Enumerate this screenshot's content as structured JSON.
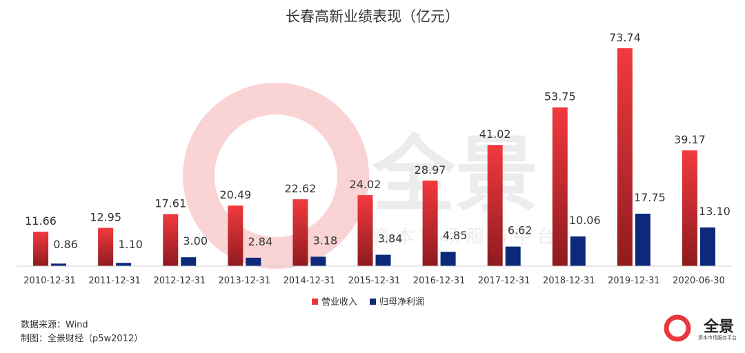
{
  "chart_data": {
    "type": "bar",
    "title": "长春高新业绩表现（亿元）",
    "categories": [
      "2010-12-31",
      "2011-12-31",
      "2012-12-31",
      "2013-12-31",
      "2014-12-31",
      "2015-12-31",
      "2016-12-31",
      "2017-12-31",
      "2018-12-31",
      "2019-12-31",
      "2020-06-30"
    ],
    "series": [
      {
        "name": "营业收入",
        "color": "#e8383d",
        "values": [
          11.66,
          12.95,
          17.61,
          20.49,
          22.62,
          24.02,
          28.97,
          41.02,
          53.75,
          73.74,
          39.17
        ]
      },
      {
        "name": "归母净利润",
        "color": "#0d2a7a",
        "values": [
          0.86,
          1.1,
          3.0,
          2.84,
          3.18,
          3.84,
          4.85,
          6.62,
          10.06,
          17.75,
          13.1
        ]
      }
    ],
    "value_labels": [
      [
        "11.66",
        "12.95",
        "17.61",
        "20.49",
        "22.62",
        "24.02",
        "28.97",
        "41.02",
        "53.75",
        "73.74",
        "39.17"
      ],
      [
        "0.86",
        "1.10",
        "3.00",
        "2.84",
        "3.18",
        "3.84",
        "4.85",
        "6.62",
        "10.06",
        "17.75",
        "13.10"
      ]
    ],
    "ylim": [
      0,
      80
    ],
    "grid": false,
    "legend_position": "bottom-center"
  },
  "footer": {
    "source": "数据来源：Wind",
    "maker": "制图：全景财经（p5w2012）"
  },
  "watermark": {
    "brand": "全景",
    "tagline": "资本市场服务平台"
  },
  "logo": {
    "text": "全景",
    "sub": "资本市场服务平台",
    "color": "#e8383d"
  }
}
